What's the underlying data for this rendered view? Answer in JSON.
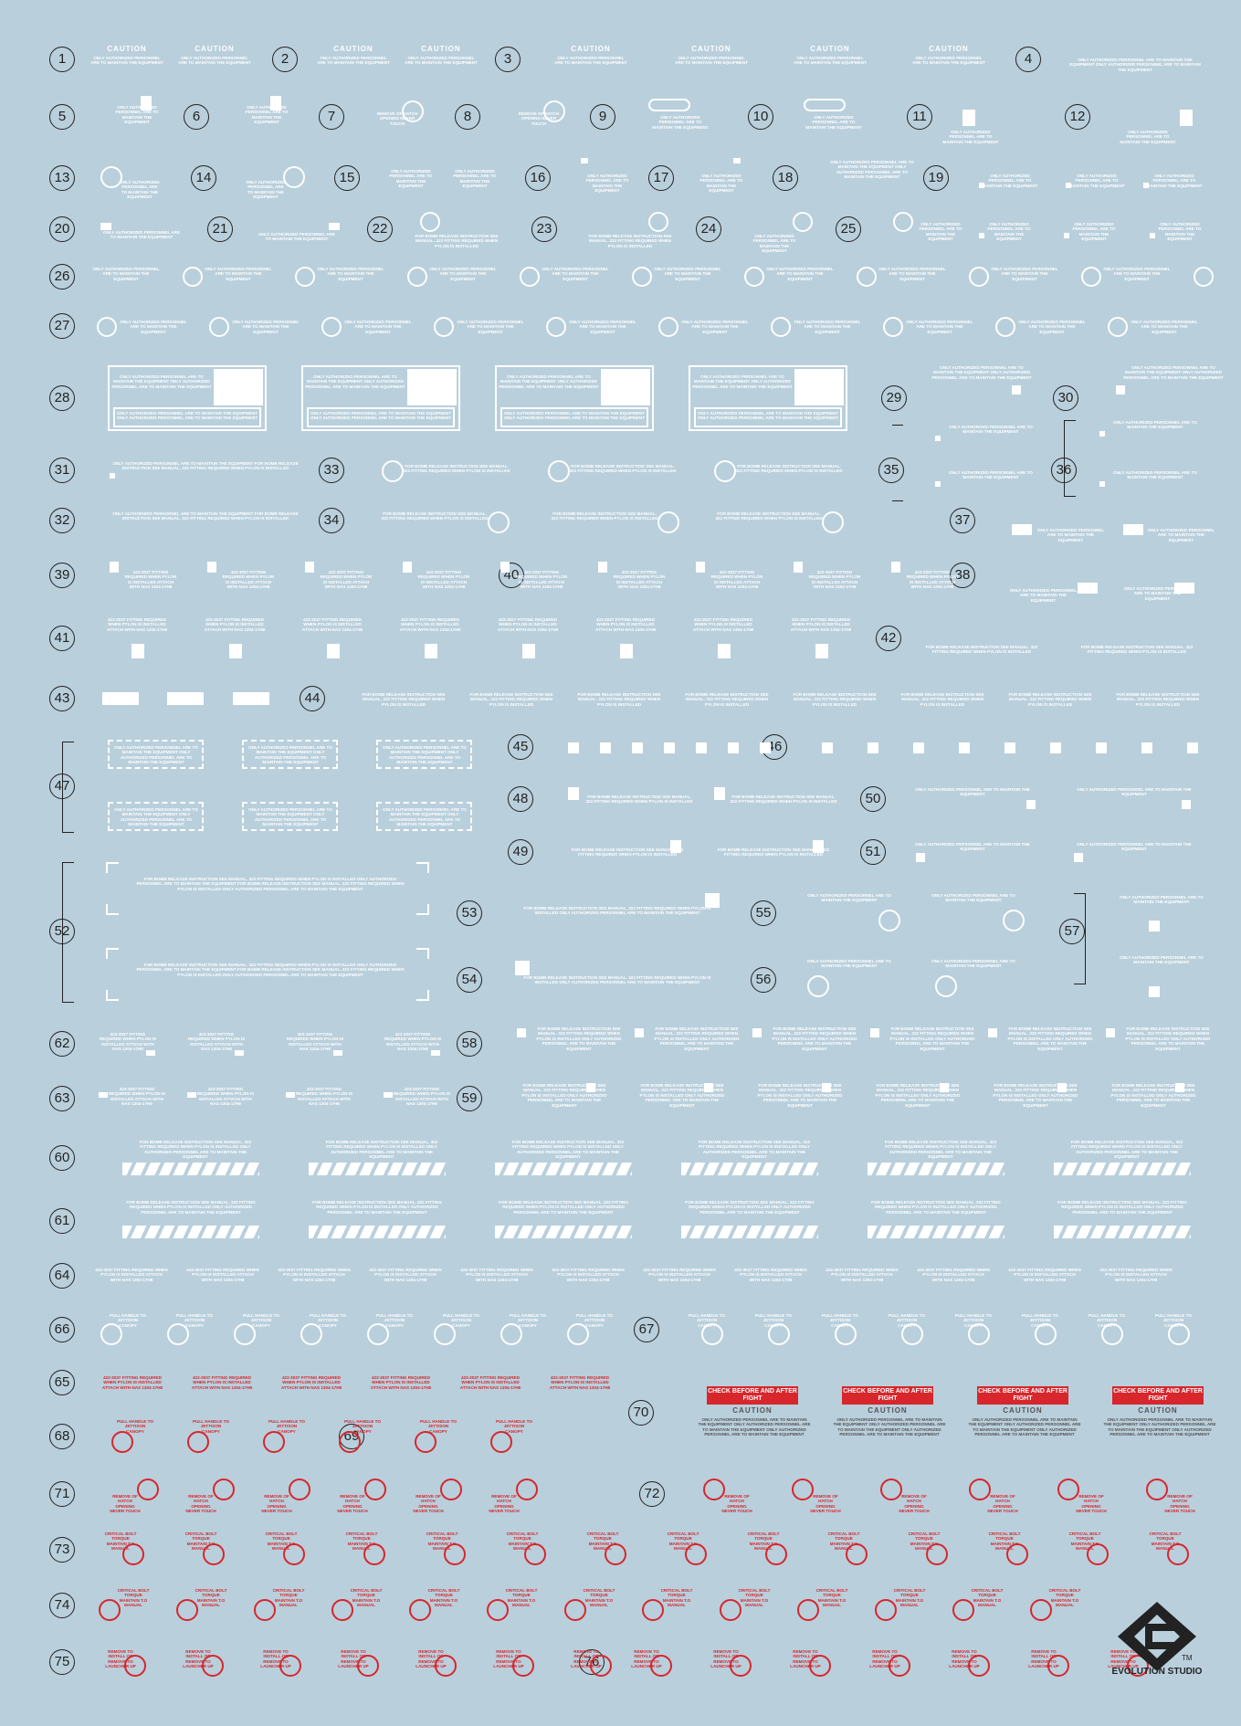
{
  "colors": {
    "background": "#b9cfdc",
    "decal_white": "#ffffff",
    "decal_red": "#d7262c",
    "label_dark": "#222222"
  },
  "labels": {
    "caution": "CAUTION",
    "check_before": "CHECK BEFORE AND AFTER FIGHT",
    "pull_jettison": "PULL HANDLE TO JETTISON CANOPY",
    "remove_hatch": "REMOVE OF HATCH OPENING NEVER TOUCH",
    "critical_bolt": "CRITICAL BOLT TORQUE MAINTAIN T.O MANUAL",
    "remove_install": "REMOVE TO INSTALL OR REMOVE TO LAUNCHER UP",
    "only_authorized": "ONLY AUTHORIZED PERSONNEL ARE TO MAINTAIN THE EQUIPMENT",
    "for_rack_release": "FOR BOMB RELEASE INSTRUCTION SEE MANUAL. 322 FITTING REQUIRED WHEN PYLON IS INSTALLED",
    "fitting_required": "422-3037 FITTING REQUIRED WHEN PYLON IS INSTALLED ATTACH WITH NAS 1304-17H8"
  },
  "logo": {
    "name": "EVOLUTION STUDIO",
    "tm": "TM"
  },
  "rows": [
    {
      "y": 65,
      "nums": [
        [
          "1",
          68
        ],
        [
          "2",
          312
        ],
        [
          "3",
          556
        ],
        [
          "4",
          1126
        ]
      ]
    },
    {
      "y": 128,
      "nums": [
        [
          "5",
          68
        ],
        [
          "6",
          215
        ],
        [
          "7",
          363
        ],
        [
          "8",
          512
        ],
        [
          "9",
          660
        ],
        [
          "10",
          833
        ],
        [
          "11",
          1007
        ],
        [
          "12",
          1180
        ]
      ]
    },
    {
      "y": 195,
      "nums": [
        [
          "13",
          68
        ],
        [
          "14",
          223
        ],
        [
          "15",
          380
        ],
        [
          "16",
          589
        ],
        [
          "17",
          724
        ],
        [
          "18",
          860
        ],
        [
          "19",
          1025
        ]
      ]
    },
    {
      "y": 251,
      "nums": [
        [
          "20",
          68
        ],
        [
          "21",
          241
        ],
        [
          "22",
          416
        ],
        [
          "23",
          596
        ],
        [
          "24",
          776
        ],
        [
          "25",
          929
        ]
      ]
    },
    {
      "y": 303,
      "nums": [
        [
          "26",
          68
        ]
      ]
    },
    {
      "y": 357,
      "nums": [
        [
          "27",
          68
        ]
      ]
    },
    {
      "y": 436,
      "nums": [
        [
          "28",
          68
        ],
        [
          "29",
          979
        ],
        [
          "30",
          1167
        ]
      ]
    },
    {
      "y": 515,
      "nums": [
        [
          "31",
          68
        ],
        [
          "33",
          363
        ],
        [
          "35",
          976
        ],
        [
          "36",
          1165
        ]
      ]
    },
    {
      "y": 570,
      "nums": [
        [
          "32",
          68
        ],
        [
          "34",
          363
        ],
        [
          "37",
          1054
        ]
      ]
    },
    {
      "y": 630,
      "nums": [
        [
          "39",
          68
        ],
        [
          "40",
          560
        ],
        [
          "38",
          1054
        ]
      ]
    },
    {
      "y": 699,
      "nums": [
        [
          "41",
          68
        ],
        [
          "42",
          973
        ]
      ]
    },
    {
      "y": 765,
      "nums": [
        [
          "43",
          68
        ],
        [
          "44",
          342
        ]
      ]
    },
    {
      "y": 818,
      "nums": [
        [
          "45",
          570
        ],
        [
          "46",
          848
        ]
      ]
    },
    {
      "y": 861,
      "nums": [
        [
          "47",
          68
        ]
      ]
    },
    {
      "y": 875,
      "nums": [
        [
          "48",
          570
        ],
        [
          "50",
          956
        ]
      ]
    },
    {
      "y": 933,
      "nums": [
        [
          "49",
          570
        ],
        [
          "51",
          956
        ]
      ]
    },
    {
      "y": 1000,
      "nums": [
        [
          "53",
          514
        ],
        [
          "55",
          836
        ]
      ]
    },
    {
      "y": 1020,
      "nums": [
        [
          "52",
          68
        ],
        [
          "57",
          1174
        ]
      ]
    },
    {
      "y": 1073,
      "nums": [
        [
          "54",
          514
        ],
        [
          "56",
          836
        ]
      ]
    },
    {
      "y": 1143,
      "nums": [
        [
          "62",
          68
        ],
        [
          "58",
          514
        ]
      ]
    },
    {
      "y": 1203,
      "nums": [
        [
          "63",
          68
        ],
        [
          "59",
          514
        ]
      ]
    },
    {
      "y": 1268,
      "nums": [
        [
          "60",
          68
        ]
      ]
    },
    {
      "y": 1337,
      "nums": [
        [
          "61",
          68
        ]
      ]
    },
    {
      "y": 1397,
      "nums": [
        [
          "64",
          68
        ]
      ]
    },
    {
      "y": 1456,
      "nums": [
        [
          "66",
          68
        ],
        [
          "67",
          708
        ]
      ]
    },
    {
      "y": 1514,
      "nums": [
        [
          "65",
          68
        ]
      ]
    },
    {
      "y": 1547,
      "nums": [
        [
          "70",
          702
        ]
      ]
    },
    {
      "y": 1573,
      "nums": [
        [
          "68",
          68
        ],
        [
          "69",
          385
        ]
      ]
    },
    {
      "y": 1636,
      "nums": [
        [
          "71",
          68
        ],
        [
          "72",
          714
        ]
      ]
    },
    {
      "y": 1697,
      "nums": [
        [
          "73",
          68
        ]
      ]
    },
    {
      "y": 1758,
      "nums": [
        [
          "74",
          68
        ]
      ]
    },
    {
      "y": 1820,
      "nums": [
        [
          "75",
          68
        ],
        [
          "76",
          648
        ]
      ]
    }
  ]
}
